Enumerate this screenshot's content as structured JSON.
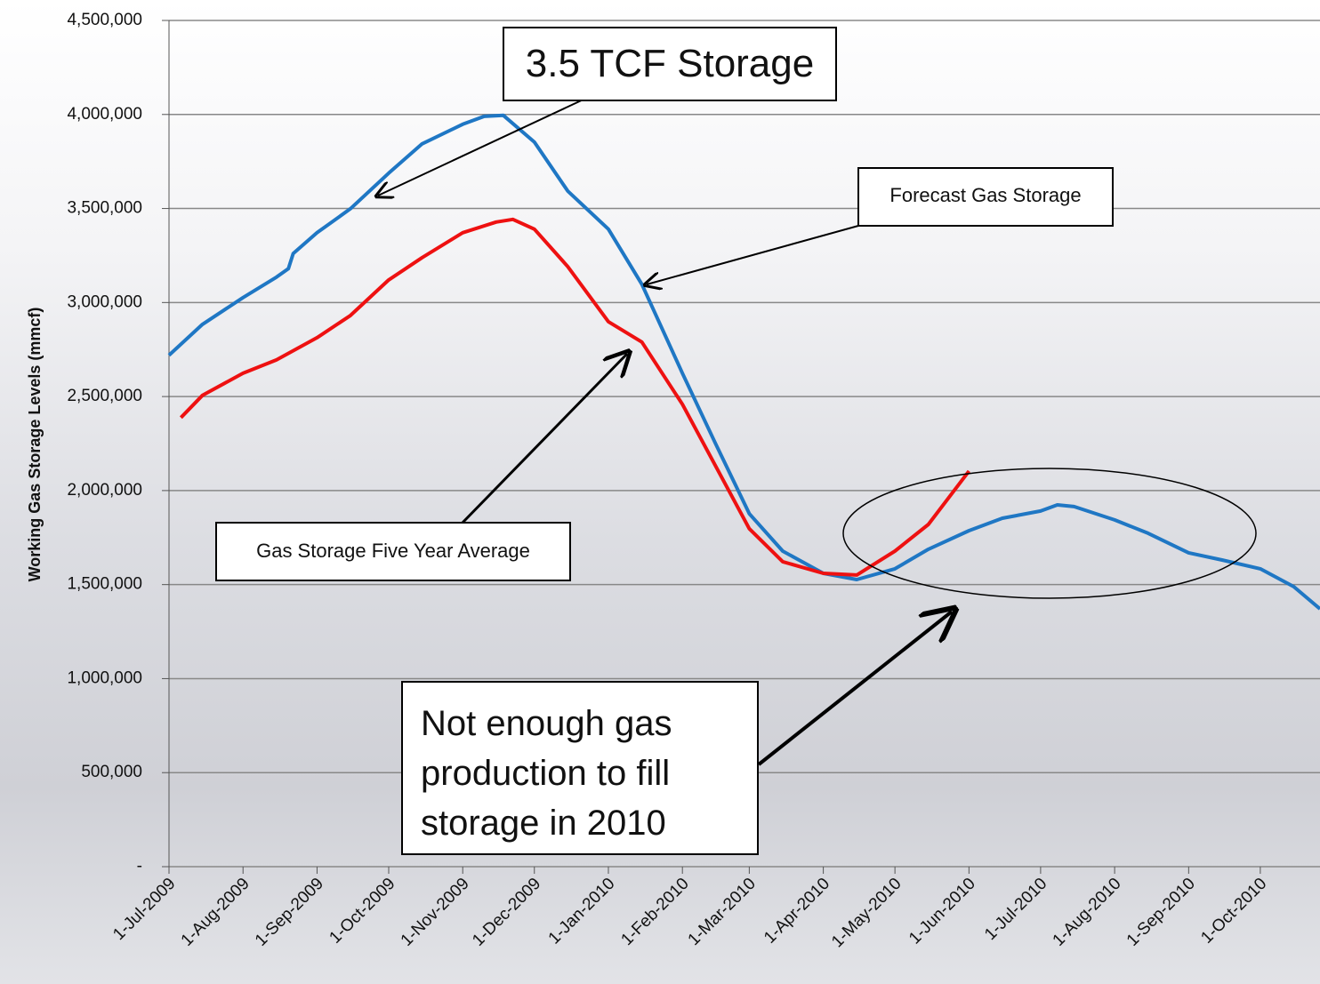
{
  "chart_data": {
    "type": "line",
    "y_label": "Working Gas Storage Levels (mmcf)",
    "xlim": [
      "2009-07-01",
      "2010-10-26"
    ],
    "ylim": [
      0,
      4500000
    ],
    "grid": true,
    "xticks": [
      {
        "value": "2009-07-01",
        "label": "1-Jul-2009"
      },
      {
        "value": "2009-08-01",
        "label": "1-Aug-2009"
      },
      {
        "value": "2009-09-01",
        "label": "1-Sep-2009"
      },
      {
        "value": "2009-10-01",
        "label": "1-Oct-2009"
      },
      {
        "value": "2009-11-01",
        "label": "1-Nov-2009"
      },
      {
        "value": "2009-12-01",
        "label": "1-Dec-2009"
      },
      {
        "value": "2010-01-01",
        "label": "1-Jan-2010"
      },
      {
        "value": "2010-02-01",
        "label": "1-Feb-2010"
      },
      {
        "value": "2010-03-01",
        "label": "1-Mar-2010"
      },
      {
        "value": "2010-04-01",
        "label": "1-Apr-2010"
      },
      {
        "value": "2010-05-01",
        "label": "1-May-2010"
      },
      {
        "value": "2010-06-01",
        "label": "1-Jun-2010"
      },
      {
        "value": "2010-07-01",
        "label": "1-Jul-2010"
      },
      {
        "value": "2010-08-01",
        "label": "1-Aug-2010"
      },
      {
        "value": "2010-09-01",
        "label": "1-Sep-2010"
      },
      {
        "value": "2010-10-01",
        "label": "1-Oct-2010"
      }
    ],
    "yticks": [
      {
        "value": 0,
        "label": "-"
      },
      {
        "value": 500000,
        "label": "500,000"
      },
      {
        "value": 1000000,
        "label": "1,000,000"
      },
      {
        "value": 1500000,
        "label": "1,500,000"
      },
      {
        "value": 2000000,
        "label": "2,000,000"
      },
      {
        "value": 2500000,
        "label": "2,500,000"
      },
      {
        "value": 3000000,
        "label": "3,000,000"
      },
      {
        "value": 3500000,
        "label": "3,500,000"
      },
      {
        "value": 4000000,
        "label": "4,000,000"
      },
      {
        "value": 4500000,
        "label": "4,500,000"
      }
    ],
    "series": [
      {
        "color": "#1f77c4",
        "x": [
          "2009-07-01",
          "2009-07-15",
          "2009-08-01",
          "2009-08-15",
          "2009-08-20",
          "2009-08-22",
          "2009-09-01",
          "2009-09-15",
          "2009-10-01",
          "2009-10-15",
          "2009-11-01",
          "2009-11-10",
          "2009-11-18",
          "2009-12-01",
          "2009-12-15",
          "2010-01-01",
          "2010-01-15",
          "2010-02-01",
          "2010-02-15",
          "2010-03-01",
          "2010-03-15",
          "2010-04-01",
          "2010-04-15",
          "2010-05-01",
          "2010-05-15",
          "2010-06-01",
          "2010-06-15",
          "2010-07-01",
          "2010-07-08",
          "2010-07-15",
          "2010-08-01",
          "2010-08-15",
          "2010-09-01",
          "2010-09-15",
          "2010-10-01",
          "2010-10-15",
          "2010-10-26"
        ],
        "values": [
          2720000,
          2884000,
          3026000,
          3135000,
          3180000,
          3260000,
          3371000,
          3499000,
          3688000,
          3844000,
          3948000,
          3990000,
          3995000,
          3853000,
          3593000,
          3390000,
          3097000,
          2624000,
          2246000,
          1877000,
          1678000,
          1560000,
          1527000,
          1584000,
          1688000,
          1787000,
          1853000,
          1891000,
          1924000,
          1915000,
          1844000,
          1773000,
          1669000,
          1631000,
          1584000,
          1489000,
          1371000
        ]
      },
      {
        "color": "#ee1111",
        "x": [
          "2009-07-06",
          "2009-07-15",
          "2009-08-01",
          "2009-08-15",
          "2009-09-01",
          "2009-09-15",
          "2009-10-01",
          "2009-10-15",
          "2009-11-01",
          "2009-11-15",
          "2009-11-22",
          "2009-12-01",
          "2009-12-15",
          "2010-01-01",
          "2010-01-15",
          "2010-02-01",
          "2010-02-15",
          "2010-03-01",
          "2010-03-15",
          "2010-04-01",
          "2010-04-15",
          "2010-05-01",
          "2010-05-15",
          "2010-06-01"
        ],
        "values": [
          2388000,
          2506000,
          2624000,
          2695000,
          2813000,
          2931000,
          3120000,
          3239000,
          3371000,
          3428000,
          3442000,
          3390000,
          3191000,
          2898000,
          2790000,
          2459000,
          2128000,
          1797000,
          1622000,
          1560000,
          1551000,
          1678000,
          1820000,
          2104000
        ]
      }
    ],
    "annotations": [
      "3.5 TCF Storage",
      "Forecast Gas Storage",
      "Gas Storage Five Year Average",
      "Not enough gas production to fill storage in 2010"
    ]
  }
}
